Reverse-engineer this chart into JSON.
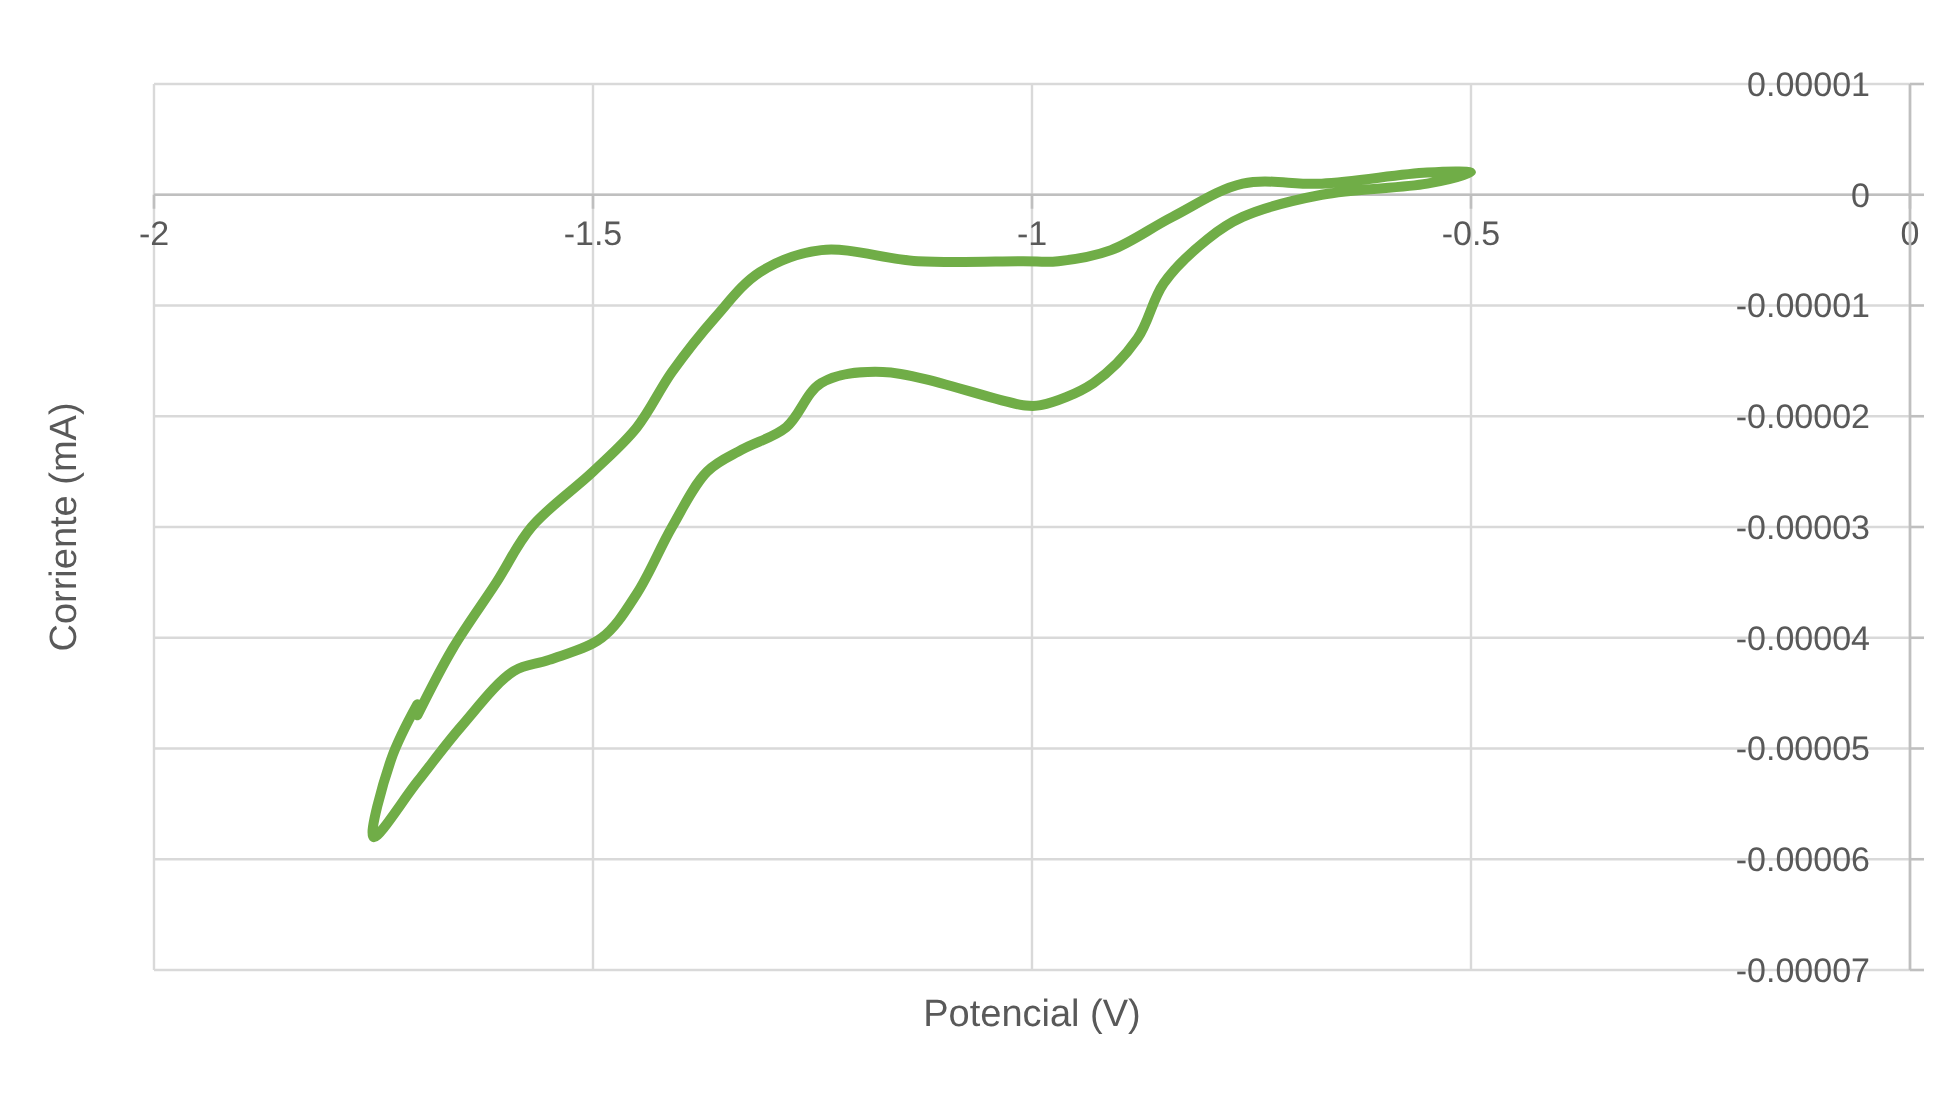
{
  "chart_data": {
    "type": "line",
    "xlabel": "Potencial (V)",
    "ylabel": "Corriente (mA)",
    "xlim": [
      -2,
      0
    ],
    "xticks": [
      -2,
      -1.5,
      -1,
      -0.5,
      0
    ],
    "ylim": [
      -7e-05,
      1e-05
    ],
    "yticks": [
      {
        "value": 1e-05,
        "label": "0.00001"
      },
      0,
      {
        "value": -1e-05,
        "label": "-0.00001"
      },
      {
        "value": -2e-05,
        "label": "-0.00002"
      },
      {
        "value": -3e-05,
        "label": "-0.00003"
      },
      {
        "value": -4e-05,
        "label": "-0.00004"
      },
      {
        "value": -5e-05,
        "label": "-0.00005"
      },
      {
        "value": -6e-05,
        "label": "-0.00006"
      },
      {
        "value": -7e-05,
        "label": "-0.00007"
      }
    ],
    "grid": true,
    "series": [
      {
        "color": "#70ad47",
        "x": [
          -1.7,
          -1.66,
          -1.61,
          -1.57,
          -1.5,
          -1.45,
          -1.41,
          -1.36,
          -1.31,
          -1.24,
          -1.13,
          -1.01,
          -0.97,
          -0.91,
          -0.84,
          -0.76,
          -0.67,
          -0.55,
          -0.5,
          -0.55,
          -0.67,
          -0.76,
          -0.8,
          -0.85,
          -0.88,
          -0.93,
          -0.99,
          -1.01,
          -1.17,
          -1.24,
          -1.28,
          -1.33,
          -1.37,
          -1.41,
          -1.45,
          -1.49,
          -1.55,
          -1.59,
          -1.65,
          -1.7,
          -1.75,
          -1.73,
          -1.7
        ],
        "values": [
          -4.7e-05,
          -4.1e-05,
          -3.5e-05,
          -3e-05,
          -2.5e-05,
          -2.1e-05,
          -1.6e-05,
          -1.1e-05,
          -7e-06,
          -5e-06,
          -6e-06,
          -6e-06,
          -6e-06,
          -5e-06,
          -2e-06,
          1e-06,
          1e-06,
          2e-06,
          2e-06,
          1e-06,
          0,
          -2e-06,
          -4e-06,
          -8e-06,
          -1.3e-05,
          -1.7e-05,
          -1.9e-05,
          -1.9e-05,
          -1.6e-05,
          -1.7e-05,
          -2.1e-05,
          -2.3e-05,
          -2.5e-05,
          -3e-05,
          -3.6e-05,
          -4e-05,
          -4.2e-05,
          -4.3e-05,
          -4.8e-05,
          -5.3e-05,
          -5.8e-05,
          -5.1e-05,
          -4.6e-05
        ]
      }
    ]
  }
}
